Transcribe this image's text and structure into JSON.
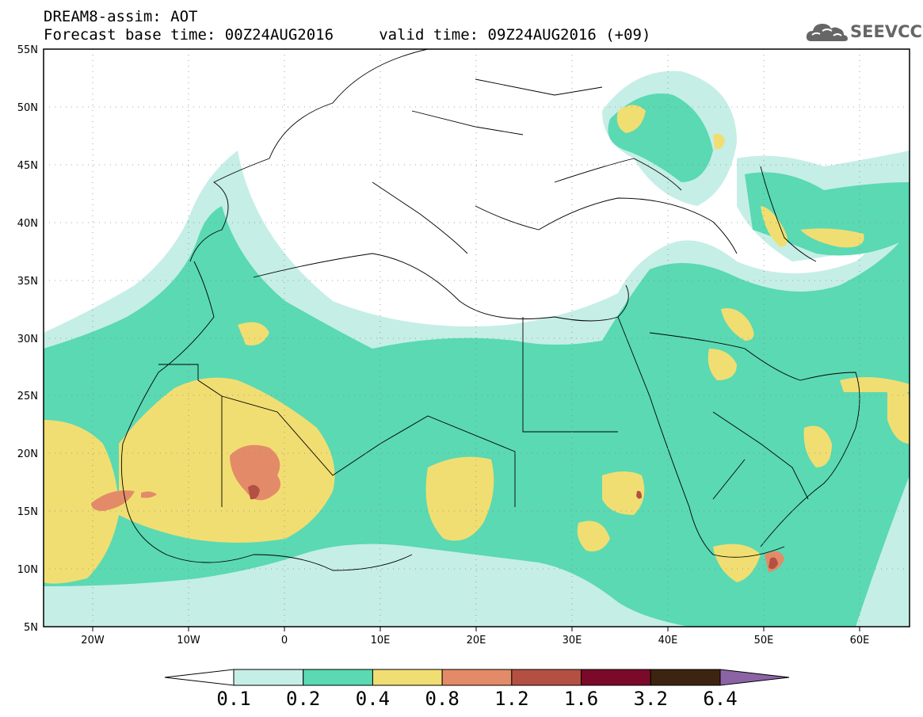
{
  "header": {
    "line1": "DREAM8-assim: AOT",
    "line2": "Forecast base time: 00Z24AUG2016     valid time: 09Z24AUG2016 (+09)"
  },
  "logo": {
    "text": "SEEVCCC",
    "icon": "cloud-icon"
  },
  "map": {
    "lon_range": [
      -25,
      65
    ],
    "lat_range": [
      5,
      55
    ],
    "grid": "dotted",
    "lat_ticks": [
      "5N",
      "10N",
      "15N",
      "20N",
      "25N",
      "30N",
      "35N",
      "40N",
      "45N",
      "50N",
      "55N"
    ],
    "lon_ticks": [
      "20W",
      "10W",
      "0",
      "10E",
      "20E",
      "30E",
      "40E",
      "50E",
      "60E"
    ]
  },
  "colorbar": {
    "labels": [
      "0.1",
      "0.2",
      "0.4",
      "0.8",
      "1.2",
      "1.6",
      "3.2",
      "6.4"
    ],
    "colors": [
      "#ffffff",
      "#c5eee6",
      "#5ad9b3",
      "#f1de72",
      "#e38b68",
      "#b45043",
      "#7b0a2a",
      "#3c2411",
      "#8b64a5"
    ]
  }
}
